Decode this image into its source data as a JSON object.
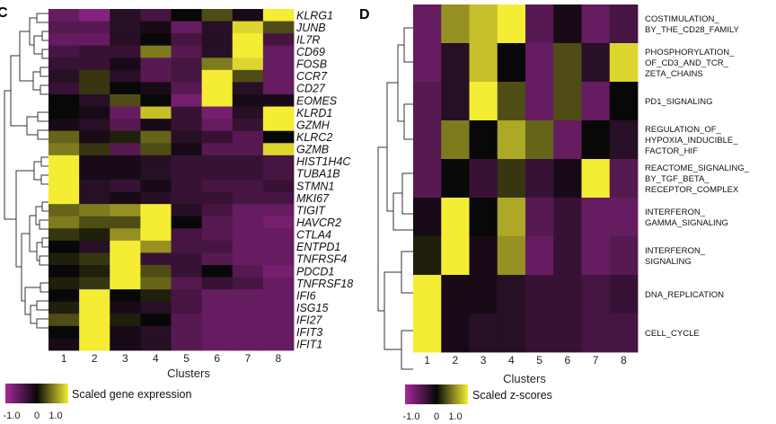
{
  "colors": {
    "low": "#a5299a",
    "mid": "#080808",
    "high": "#f4ed33"
  },
  "chart_data": [
    {
      "type": "heatmap",
      "panel": "C",
      "title": "",
      "xlabel": "Clusters",
      "x_categories": [
        "1",
        "2",
        "3",
        "4",
        "5",
        "6",
        "7",
        "8"
      ],
      "y_categories": [
        "KLRG1",
        "JUNB",
        "IL7R",
        "CD69",
        "FOSB",
        "CCR7",
        "CD27",
        "EOMES",
        "KLRD1",
        "GZMH",
        "KLRC2",
        "GZMB",
        "HIST1H4C",
        "TUBA1B",
        "STMN1",
        "MKI67",
        "TIGIT",
        "HAVCR2",
        "CTLA4",
        "ENTPD1",
        "TNFRSF4",
        "PDCD1",
        "TNFRSF18",
        "IFI6",
        "ISG15",
        "IFI27",
        "IFIT3",
        "IFIT1"
      ],
      "values": [
        [
          -0.6,
          -0.8,
          -0.2,
          -0.4,
          0.0,
          0.3,
          -0.1,
          1.0
        ],
        [
          -0.5,
          -0.5,
          -0.2,
          -0.1,
          -0.6,
          -0.2,
          0.9,
          0.3
        ],
        [
          -0.6,
          -0.6,
          -0.2,
          0.0,
          -0.4,
          -0.2,
          1.0,
          -0.4
        ],
        [
          -0.4,
          -0.3,
          -0.3,
          0.5,
          -0.5,
          -0.2,
          1.0,
          -0.6
        ],
        [
          -0.3,
          -0.3,
          -0.1,
          -0.5,
          -0.4,
          0.5,
          0.9,
          -0.6
        ],
        [
          -0.2,
          0.2,
          -0.2,
          -0.5,
          -0.4,
          1.0,
          0.3,
          -0.6
        ],
        [
          -0.3,
          0.2,
          0.0,
          -0.1,
          -0.5,
          1.0,
          -0.2,
          -0.6
        ],
        [
          0.0,
          -0.2,
          0.3,
          0.0,
          -0.7,
          1.0,
          -0.1,
          -0.1
        ],
        [
          0.0,
          -0.1,
          -0.6,
          0.8,
          -0.3,
          -0.7,
          -0.2,
          1.0
        ],
        [
          -0.1,
          -0.2,
          -0.5,
          -0.1,
          -0.3,
          -0.6,
          -0.3,
          1.0
        ],
        [
          0.4,
          -0.1,
          0.1,
          0.4,
          -0.2,
          -0.3,
          -0.5,
          0.0
        ],
        [
          0.5,
          0.2,
          -0.5,
          0.3,
          -0.1,
          -0.5,
          -0.5,
          0.9
        ],
        [
          1.0,
          -0.1,
          -0.1,
          -0.2,
          -0.3,
          -0.3,
          -0.3,
          -0.4
        ],
        [
          1.0,
          -0.1,
          -0.1,
          -0.2,
          -0.3,
          -0.3,
          -0.3,
          -0.4
        ],
        [
          1.0,
          -0.2,
          -0.3,
          -0.1,
          -0.3,
          -0.4,
          -0.4,
          -0.3
        ],
        [
          1.0,
          -0.2,
          -0.1,
          -0.2,
          -0.3,
          -0.3,
          -0.4,
          -0.4
        ],
        [
          0.4,
          0.5,
          0.6,
          1.0,
          -0.2,
          -0.4,
          -0.6,
          -0.6
        ],
        [
          0.5,
          0.3,
          0.3,
          1.0,
          0.0,
          -0.5,
          -0.6,
          -0.7
        ],
        [
          0.2,
          0.1,
          0.6,
          1.0,
          -0.4,
          -0.5,
          -0.6,
          -0.6
        ],
        [
          0.0,
          -0.2,
          1.0,
          0.6,
          -0.4,
          -0.4,
          -0.6,
          -0.6
        ],
        [
          0.1,
          0.2,
          1.0,
          -0.3,
          -0.3,
          -0.5,
          -0.6,
          -0.6
        ],
        [
          0.0,
          0.1,
          1.0,
          0.3,
          -0.3,
          0.0,
          -0.5,
          -0.7
        ],
        [
          0.1,
          0.2,
          1.0,
          0.4,
          -0.5,
          -0.3,
          -0.4,
          -0.6
        ],
        [
          0.0,
          1.0,
          0.0,
          0.1,
          -0.4,
          -0.6,
          -0.6,
          -0.6
        ],
        [
          0.1,
          1.0,
          -0.1,
          -0.2,
          -0.4,
          -0.6,
          -0.6,
          -0.6
        ],
        [
          0.3,
          1.0,
          0.1,
          0.0,
          -0.5,
          -0.6,
          -0.6,
          -0.6
        ],
        [
          0.0,
          1.0,
          -0.1,
          -0.2,
          -0.5,
          -0.6,
          -0.6,
          -0.6
        ],
        [
          -0.1,
          1.0,
          -0.1,
          -0.2,
          -0.5,
          -0.6,
          -0.6,
          -0.6
        ]
      ],
      "legend": {
        "label": "Scaled gene expression",
        "ticks": [
          "-1.0",
          "0",
          "1.0"
        ],
        "range": [
          -1.0,
          1.0
        ]
      }
    },
    {
      "type": "heatmap",
      "panel": "D",
      "title": "",
      "xlabel": "Clusters",
      "x_categories": [
        "1",
        "2",
        "3",
        "4",
        "5",
        "6",
        "7",
        "8"
      ],
      "y_categories": [
        [
          "COSTIMULATION_",
          "BY_THE_CD28_FAMILY"
        ],
        [
          "PHOSPHORYLATION_",
          "OF_CD3_AND_TCR_",
          "ZETA_CHAINS"
        ],
        [
          "PD1_SIGNALING"
        ],
        [
          "REGULATION_OF_",
          "HYPOXIA_INDUCIBLE_",
          "FACTOR_HIF"
        ],
        [
          "REACTOME_SIGNALING_",
          "BY_TGF_BETA_",
          "RECEPTOR_COMPLEX"
        ],
        [
          "INTERFERON_",
          "GAMMA_SIGNALING"
        ],
        [
          "INTERFERON_",
          "SIGNALING"
        ],
        [
          "DNA_REPLICATION"
        ],
        [
          "CELL_CYCLE"
        ]
      ],
      "values": [
        [
          -0.6,
          0.6,
          0.8,
          1.0,
          -0.5,
          -0.1,
          -0.6,
          -0.4
        ],
        [
          -0.6,
          -0.2,
          0.8,
          0.0,
          -0.6,
          0.3,
          -0.2,
          0.9
        ],
        [
          -0.5,
          -0.2,
          1.0,
          0.3,
          -0.6,
          0.3,
          -0.6,
          0.0
        ],
        [
          -0.5,
          0.5,
          0.0,
          0.7,
          0.4,
          -0.6,
          0.0,
          -0.2
        ],
        [
          -0.5,
          0.0,
          -0.3,
          0.2,
          -0.3,
          -0.1,
          1.0,
          -0.5
        ],
        [
          -0.1,
          1.0,
          0.0,
          0.7,
          -0.5,
          -0.3,
          -0.6,
          -0.6
        ],
        [
          0.1,
          1.0,
          -0.1,
          0.6,
          -0.6,
          -0.3,
          -0.6,
          -0.5
        ],
        [
          1.0,
          -0.1,
          -0.1,
          -0.2,
          -0.3,
          -0.3,
          -0.4,
          -0.3
        ],
        [
          1.0,
          -0.1,
          -0.2,
          -0.2,
          -0.3,
          -0.3,
          -0.4,
          -0.4
        ]
      ],
      "legend": {
        "label": "Scaled z-scores",
        "ticks": [
          "-1.0",
          "0",
          "1.0"
        ],
        "range": [
          -1.0,
          1.0
        ]
      }
    }
  ]
}
